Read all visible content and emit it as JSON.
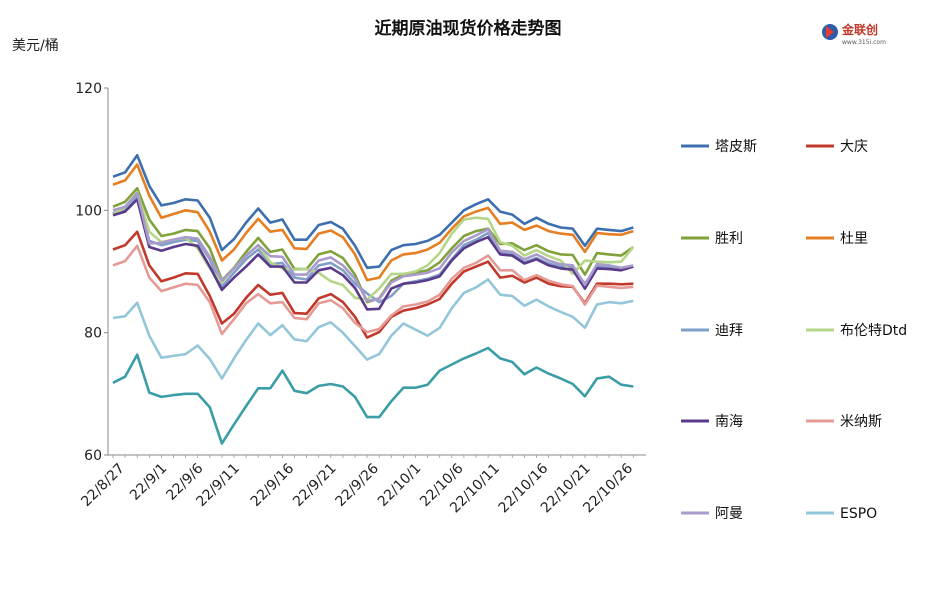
{
  "chart_data": {
    "type": "line",
    "title": "近期原油现货价格走势图",
    "ylabel": "美元/桶",
    "xlabel": "",
    "ylim": [
      60,
      120
    ],
    "yticks": [
      60,
      80,
      100,
      120
    ],
    "grid": false,
    "legend_position": "right",
    "x": [
      "22/8/26",
      "22/8/29",
      "22/8/30",
      "22/8/31",
      "22/9/1",
      "22/9/2",
      "22/9/5",
      "22/9/6",
      "22/9/7",
      "22/9/8",
      "22/9/9",
      "22/9/12",
      "22/9/13",
      "22/9/14",
      "22/9/15",
      "22/9/16",
      "22/9/19",
      "22/9/20",
      "22/9/21",
      "22/9/22",
      "22/9/23",
      "22/9/26",
      "22/9/27",
      "22/9/28",
      "22/9/29",
      "22/9/30",
      "22/10/3",
      "22/10/4",
      "22/10/5",
      "22/10/6",
      "22/10/7",
      "22/10/10",
      "22/10/11",
      "22/10/12",
      "22/10/13",
      "22/10/14",
      "22/10/17",
      "22/10/18",
      "22/10/19",
      "22/10/20",
      "22/10/21",
      "22/10/24",
      "22/10/25",
      "22/10/26"
    ],
    "x_tick_labels": [
      "22/8/27",
      "22/9/1",
      "22/9/6",
      "22/9/11",
      "22/9/16",
      "22/9/21",
      "22/9/26",
      "22/10/1",
      "22/10/6",
      "22/10/11",
      "22/10/16",
      "22/10/21",
      "22/10/26"
    ],
    "x_tick_indices": [
      0.5,
      4,
      7,
      10,
      14.5,
      18,
      21.5,
      25,
      28.5,
      31.5,
      35.5,
      39,
      42.5
    ],
    "series": [
      {
        "name": "塔皮斯",
        "color": "#3D6FAF",
        "values": [
          105.5,
          106.2,
          109.0,
          104.0,
          100.8,
          101.2,
          101.8,
          101.6,
          98.8,
          93.5,
          95.3,
          98.0,
          100.3,
          98.0,
          98.5,
          95.2,
          95.2,
          97.6,
          98.1,
          97.0,
          94.2,
          90.6,
          90.8,
          93.5,
          94.3,
          94.5,
          95.0,
          96.0,
          98.0,
          100.0,
          101.0,
          101.8,
          99.8,
          99.3,
          97.8,
          98.8,
          97.8,
          97.2,
          97.0,
          94.2,
          97.0,
          96.8,
          96.6,
          97.2
        ]
      },
      {
        "name": "大庆",
        "color": "#C0392B",
        "values": [
          93.6,
          94.3,
          96.5,
          91.0,
          88.4,
          89.0,
          89.7,
          89.6,
          86.0,
          81.5,
          83.1,
          85.7,
          87.8,
          86.2,
          86.5,
          83.2,
          83.1,
          85.6,
          86.3,
          85.0,
          82.6,
          79.2,
          80.1,
          82.6,
          83.6,
          84.0,
          84.6,
          85.5,
          88.0,
          90.0,
          90.8,
          91.6,
          89.0,
          89.3,
          88.2,
          89.0,
          88.0,
          87.6,
          87.5,
          84.8,
          88.0,
          88.0,
          87.9,
          88.0
        ]
      },
      {
        "name": "胜利",
        "color": "#7FA23B",
        "values": [
          100.6,
          101.4,
          103.6,
          98.5,
          95.8,
          96.2,
          96.8,
          96.6,
          93.8,
          88.6,
          90.6,
          93.2,
          95.5,
          93.2,
          93.6,
          90.4,
          90.4,
          92.8,
          93.3,
          92.2,
          89.5,
          85.0,
          85.6,
          88.5,
          89.5,
          89.8,
          90.2,
          91.5,
          93.8,
          95.8,
          96.6,
          97.0,
          94.5,
          94.6,
          93.5,
          94.3,
          93.3,
          92.8,
          92.7,
          89.5,
          93.0,
          92.8,
          92.6,
          94.0
        ]
      },
      {
        "name": "杜里",
        "color": "#E67E22",
        "values": [
          104.2,
          104.9,
          107.5,
          102.4,
          98.8,
          99.4,
          100.0,
          99.7,
          96.5,
          91.8,
          93.6,
          96.3,
          98.6,
          96.5,
          96.8,
          93.8,
          93.7,
          96.2,
          96.7,
          95.6,
          92.8,
          88.6,
          89.0,
          91.8,
          92.8,
          93.0,
          93.6,
          94.7,
          97.0,
          99.0,
          99.8,
          100.4,
          97.8,
          98.0,
          96.8,
          97.5,
          96.6,
          96.2,
          96.0,
          93.2,
          96.3,
          96.1,
          96.0,
          96.6
        ]
      },
      {
        "name": "迪拜",
        "color": "#7F9FC8",
        "values": [
          99.5,
          100.2,
          102.5,
          95.0,
          94.3,
          94.8,
          95.2,
          95.0,
          92.0,
          87.5,
          89.8,
          92.0,
          93.6,
          91.2,
          91.4,
          89.0,
          88.7,
          91.0,
          91.4,
          90.2,
          88.0,
          86.4,
          85.0,
          86.0,
          88.0,
          88.4,
          88.8,
          89.5,
          92.0,
          94.3,
          95.2,
          96.3,
          93.0,
          92.8,
          91.5,
          92.2,
          91.3,
          90.8,
          90.6,
          88.0,
          90.8,
          90.6,
          90.4,
          90.8
        ]
      },
      {
        "name": "布伦特Dtd",
        "color": "#B5D688",
        "values": [
          99.3,
          100.5,
          103.0,
          96.5,
          94.8,
          95.2,
          95.5,
          93.8,
          90.5,
          88.2,
          90.5,
          92.6,
          94.3,
          91.5,
          90.5,
          90.3,
          90.4,
          89.8,
          88.4,
          87.8,
          85.7,
          85.4,
          87.2,
          89.6,
          89.6,
          90.0,
          91.0,
          93.0,
          96.2,
          98.5,
          98.8,
          98.6,
          94.8,
          94.2,
          92.6,
          93.5,
          92.5,
          91.8,
          89.6,
          91.8,
          91.6,
          91.5,
          91.6,
          94.0
        ]
      },
      {
        "name": "南海",
        "color": "#5B3A8C",
        "values": [
          99.2,
          99.8,
          101.8,
          94.0,
          93.4,
          94.0,
          94.5,
          94.2,
          90.8,
          87.0,
          89.0,
          90.8,
          92.8,
          90.8,
          90.8,
          88.2,
          88.2,
          90.2,
          90.6,
          89.4,
          87.3,
          83.8,
          83.9,
          87.2,
          88.0,
          88.2,
          88.6,
          89.2,
          91.8,
          93.8,
          94.8,
          95.6,
          92.8,
          92.6,
          91.3,
          92.0,
          91.0,
          90.5,
          90.3,
          87.2,
          90.5,
          90.4,
          90.2,
          90.8
        ]
      },
      {
        "name": "米纳斯",
        "color": "#E59A95",
        "values": [
          91.0,
          91.7,
          94.2,
          89.0,
          86.8,
          87.4,
          88.0,
          87.8,
          85.0,
          79.8,
          82.2,
          84.8,
          86.3,
          84.8,
          85.0,
          82.4,
          82.2,
          84.8,
          85.3,
          84.0,
          81.6,
          80.1,
          80.6,
          82.8,
          84.3,
          84.6,
          85.1,
          86.2,
          88.8,
          90.6,
          91.4,
          92.6,
          90.2,
          90.2,
          88.6,
          89.4,
          88.5,
          87.9,
          87.6,
          84.6,
          87.7,
          87.5,
          87.3,
          87.5
        ]
      },
      {
        "name": "阿曼",
        "color": "#A99BCB",
        "values": [
          100.0,
          100.6,
          102.8,
          94.6,
          94.7,
          95.2,
          95.6,
          95.4,
          92.4,
          88.5,
          90.5,
          92.6,
          94.3,
          92.5,
          92.4,
          89.5,
          89.5,
          91.8,
          92.3,
          91.0,
          88.8,
          85.2,
          85.5,
          88.2,
          89.2,
          89.5,
          89.8,
          90.5,
          93.1,
          95.0,
          95.9,
          96.9,
          93.4,
          93.2,
          92.0,
          92.8,
          91.8,
          91.2,
          91.0,
          87.8,
          91.2,
          91.0,
          90.6,
          91.0
        ]
      },
      {
        "name": "ESPO",
        "color": "#93C6D9",
        "values": [
          82.4,
          82.7,
          84.9,
          79.5,
          75.9,
          76.2,
          76.5,
          77.9,
          75.7,
          72.5,
          75.8,
          78.8,
          81.5,
          79.6,
          81.2,
          78.9,
          78.6,
          80.9,
          81.7,
          80.0,
          77.8,
          75.6,
          76.5,
          79.5,
          81.5,
          80.5,
          79.5,
          80.8,
          84.0,
          86.5,
          87.4,
          88.7,
          86.2,
          86.0,
          84.4,
          85.4,
          84.3,
          83.4,
          82.6,
          80.8,
          84.6,
          85.0,
          84.8,
          85.2
        ]
      },
      {
        "name": "",
        "color": "#3B9DA6",
        "values": [
          71.8,
          72.8,
          76.4,
          70.2,
          69.5,
          69.8,
          70.0,
          70.0,
          67.8,
          61.9,
          65.0,
          68.0,
          70.9,
          70.9,
          73.8,
          70.5,
          70.1,
          71.3,
          71.6,
          71.2,
          69.5,
          66.2,
          66.2,
          68.8,
          71.0,
          71.0,
          71.5,
          73.8,
          74.8,
          75.8,
          76.6,
          77.5,
          75.8,
          75.2,
          73.2,
          74.3,
          73.3,
          72.5,
          71.6,
          69.6,
          72.5,
          72.8,
          71.5,
          71.2
        ]
      }
    ]
  },
  "header": {
    "title": "近期原油现货价格走势图",
    "unit": "美元/桶",
    "logo_text": "金联创",
    "logo_url_text": "www.315i.com"
  }
}
